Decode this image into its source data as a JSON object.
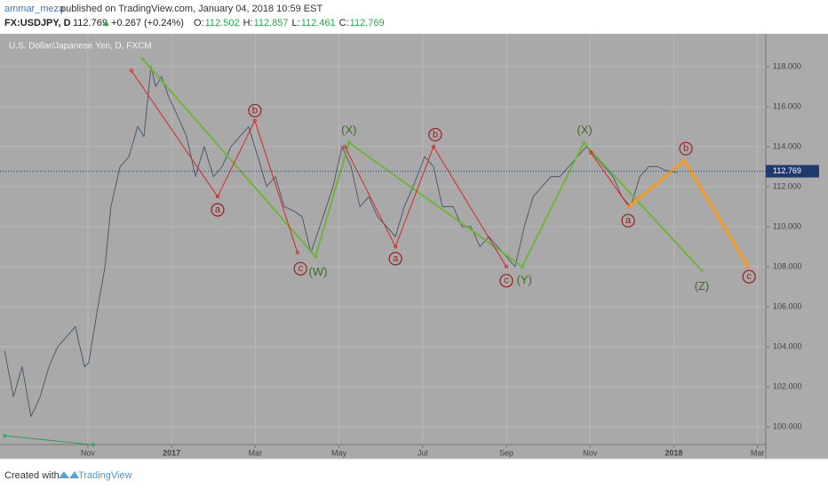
{
  "header": {
    "user": "ammar_meza",
    "published": "published on TradingView.com, January 04, 2018 10:59 EST",
    "symbol": "FX:USDJPY, D",
    "price": "112.769",
    "arrow": "▲",
    "change": "+0.267 (+0.24%)",
    "ohlc": [
      {
        "k": "O:",
        "v": "112.502"
      },
      {
        "k": "H:",
        "v": "112.857"
      },
      {
        "k": "L:",
        "v": "112.461"
      },
      {
        "k": "C:",
        "v": "112.769"
      }
    ]
  },
  "footer": {
    "created": "Created with",
    "brand": "TradingView"
  },
  "chart_data": {
    "type": "line",
    "title": "U.S. Dollar/Japanese Yen, D, FXCM",
    "xlim": [
      -2.1,
      16.2
    ],
    "ylim": [
      99.11,
      119.64
    ],
    "xticks": [
      {
        "value": 0,
        "label": "Nov"
      },
      {
        "value": 2,
        "label": "2017"
      },
      {
        "value": 4,
        "label": "Mar"
      },
      {
        "value": 6,
        "label": "May"
      },
      {
        "value": 8,
        "label": "Jul"
      },
      {
        "value": 10,
        "label": "Sep"
      },
      {
        "value": 12,
        "label": "Nov"
      },
      {
        "value": 14,
        "label": "2018"
      },
      {
        "value": 16,
        "label": "Mar"
      }
    ],
    "yticks": [
      {
        "value": 100,
        "label": "100.000"
      },
      {
        "value": 102,
        "label": "102.000"
      },
      {
        "value": 104,
        "label": "104.000"
      },
      {
        "value": 106,
        "label": "106.000"
      },
      {
        "value": 108,
        "label": "108.000"
      },
      {
        "value": 110,
        "label": "110.000"
      },
      {
        "value": 112,
        "label": "112.000"
      },
      {
        "value": 114,
        "label": "114.000"
      },
      {
        "value": 116,
        "label": "116.000"
      },
      {
        "value": 118,
        "label": "118.000"
      }
    ],
    "grid": true,
    "last_price": 112.769,
    "series": [
      {
        "color": "#4d5b6e",
        "width": 1,
        "x": [
          -1.99,
          -1.78,
          -1.57,
          -1.36,
          -1.14,
          -0.93,
          -0.72,
          -0.51,
          -0.3,
          -0.08,
          0.02,
          0.24,
          0.41,
          0.55,
          0.77,
          0.98,
          1.19,
          1.34,
          1.51,
          1.62,
          1.76,
          1.93,
          2.15,
          2.36,
          2.57,
          2.78,
          3.0,
          3.21,
          3.42,
          3.63,
          3.84,
          4.06,
          4.27,
          4.48,
          4.69,
          4.91,
          5.12,
          5.33,
          5.54,
          5.86,
          6.07,
          6.29,
          6.5,
          6.71,
          6.92,
          7.14,
          7.35,
          7.56,
          7.77,
          8.05,
          8.26,
          8.47,
          8.73,
          8.94,
          9.15,
          9.37,
          9.58,
          9.79,
          10.0,
          10.21,
          10.43,
          10.64,
          10.85,
          11.06,
          11.28,
          11.49,
          11.7,
          11.91,
          12.13,
          12.34,
          12.55,
          12.76,
          12.97,
          13.19,
          13.4,
          13.61,
          13.82,
          14.08
        ],
        "values": [
          103.8,
          101.5,
          103,
          100.5,
          101.5,
          103,
          104,
          104.5,
          105,
          103,
          103.2,
          106,
          108,
          111,
          113,
          113.5,
          115,
          114.5,
          118,
          117,
          117.5,
          116.5,
          115.5,
          114.5,
          112.5,
          114,
          112.5,
          113,
          114,
          114.5,
          115,
          113.5,
          112,
          112.5,
          111,
          110.8,
          110.5,
          108.7,
          110,
          112,
          114,
          113,
          111,
          111.5,
          110.5,
          110,
          109.5,
          111,
          112,
          113.5,
          113,
          111,
          111,
          110,
          110,
          109,
          109.5,
          109,
          108.5,
          108,
          110,
          111.5,
          112,
          112.5,
          112.5,
          113,
          113.5,
          114,
          113.5,
          113,
          112.5,
          111.5,
          111,
          112.5,
          113,
          113,
          112.8,
          112.7
        ]
      },
      {
        "color": "#6fb43c",
        "width": 2,
        "x": [
          1.3,
          5.44,
          6.24,
          10.38,
          11.85,
          14.67
        ],
        "values": [
          118.4,
          108.5,
          114.2,
          108,
          114.2,
          107.8
        ]
      },
      {
        "color": "#d62828",
        "width": 1,
        "x": [
          1.04,
          3.1,
          3.99,
          5.01
        ],
        "values": [
          117.8,
          111.5,
          115.3,
          108.7
        ]
      },
      {
        "color": "#d62828",
        "width": 1,
        "x": [
          6.14,
          7.35,
          8.26,
          10.0
        ],
        "values": [
          114,
          109,
          114,
          108
        ]
      },
      {
        "color": "#d62828",
        "width": 1,
        "x": [
          12.02,
          12.93
        ],
        "values": [
          113.7,
          111
        ]
      },
      {
        "color": "#f59a1a",
        "width": 3,
        "x": [
          12.93,
          14.25,
          15.78
        ],
        "values": [
          111,
          113.3,
          108
        ]
      },
      {
        "color": "#2e9e5a",
        "width": 1,
        "x": [
          -1.99,
          0.12
        ],
        "values": [
          99.55,
          99.1
        ]
      }
    ],
    "annotations": [
      {
        "text": "a",
        "x": 3.1,
        "y": 110.84,
        "color": "#9b1c1c"
      },
      {
        "text": "b",
        "x": 3.99,
        "y": 115.8,
        "color": "#9b1c1c"
      },
      {
        "text": "c",
        "x": 5.08,
        "y": 107.9,
        "color": "#9b1c1c"
      },
      {
        "text": "(W)",
        "x": 5.5,
        "y": 107.7,
        "color": "#3d6b22"
      },
      {
        "text": "(X)",
        "x": 6.24,
        "y": 114.8,
        "color": "#3d6b22"
      },
      {
        "text": "a",
        "x": 7.35,
        "y": 108.4,
        "color": "#9b1c1c"
      },
      {
        "text": "b",
        "x": 8.3,
        "y": 114.6,
        "color": "#9b1c1c"
      },
      {
        "text": "c",
        "x": 10.0,
        "y": 107.3,
        "color": "#9b1c1c"
      },
      {
        "text": "(Y)",
        "x": 10.43,
        "y": 107.3,
        "color": "#3d6b22"
      },
      {
        "text": "(X)",
        "x": 11.87,
        "y": 114.8,
        "color": "#3d6b22"
      },
      {
        "text": "a",
        "x": 12.91,
        "y": 110.3,
        "color": "#9b1c1c"
      },
      {
        "text": "b",
        "x": 14.29,
        "y": 113.9,
        "color": "#9b1c1c"
      },
      {
        "text": "(Z)",
        "x": 14.67,
        "y": 107,
        "color": "#3d6b22"
      },
      {
        "text": "c",
        "x": 15.8,
        "y": 107.5,
        "color": "#9b1c1c"
      }
    ]
  }
}
